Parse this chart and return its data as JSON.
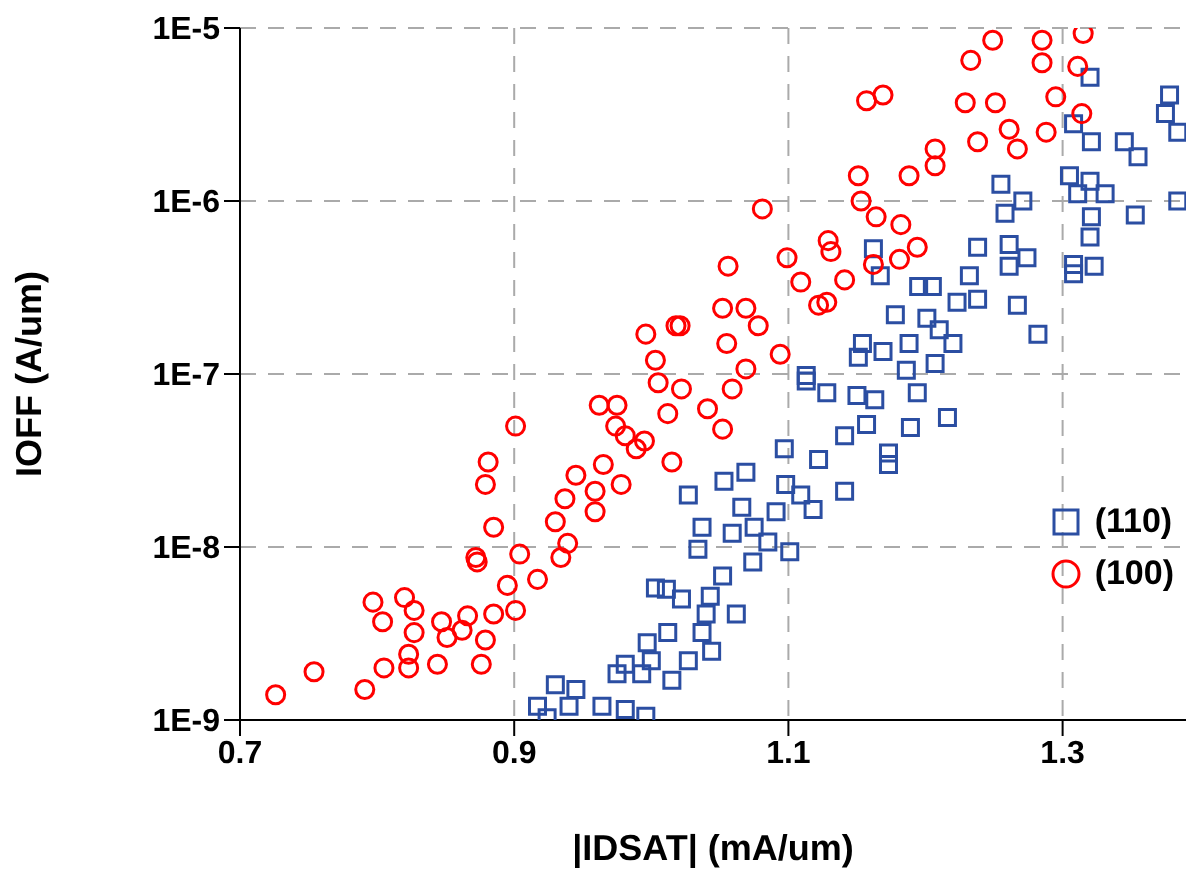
{
  "chart_data": {
    "type": "scatter",
    "xlabel": "|IDSAT| (mA/um)",
    "ylabel": "IOFF (A/um)",
    "log": "y",
    "grid": true,
    "legend": "right",
    "xlim": [
      0.7,
      1.39
    ],
    "xticks": [
      0.7,
      0.9,
      1.1,
      1.3
    ],
    "ylim": [
      1e-09,
      1e-05
    ],
    "yticks": [
      {
        "value": 1e-09,
        "label": "1E-9"
      },
      {
        "value": 1e-08,
        "label": "1E-8"
      },
      {
        "value": 1e-07,
        "label": "1E-7"
      },
      {
        "value": 1e-06,
        "label": "1E-6"
      },
      {
        "value": 1e-05,
        "label": "1E-5"
      }
    ],
    "series": [
      {
        "name": "(110)",
        "color": "#2b4ea2",
        "marker": "square",
        "x": [
          1.32,
          1.378,
          1.375,
          1.384,
          1.308,
          1.321,
          1.345,
          1.355,
          1.305,
          1.32,
          1.311,
          1.331,
          1.384,
          1.255,
          1.271,
          1.258,
          1.353,
          1.321,
          1.32,
          1.261,
          1.238,
          1.274,
          1.162,
          1.261,
          1.308,
          1.323,
          1.308,
          1.232,
          1.167,
          1.195,
          1.205,
          1.223,
          1.238,
          1.267,
          1.178,
          1.201,
          1.21,
          1.282,
          1.154,
          1.188,
          1.169,
          1.22,
          1.151,
          1.207,
          1.113,
          1.186,
          1.113,
          1.128,
          1.15,
          1.163,
          1.194,
          1.216,
          1.189,
          1.157,
          1.141,
          1.173,
          1.173,
          1.097,
          1.122,
          1.069,
          1.053,
          1.098,
          1.141,
          1.109,
          1.027,
          1.066,
          1.118,
          1.091,
          1.037,
          1.075,
          1.059,
          1.085,
          1.101,
          1.034,
          1.074,
          1.052,
          1.011,
          1.022,
          1.043,
          1.062,
          1.04,
          1.012,
          1.037,
          1.044,
          1.027,
          1.015,
          1.003,
          0.997,
          1.0,
          0.981,
          0.993,
          0.975,
          0.93,
          0.945,
          0.917,
          0.94,
          0.964,
          0.981,
          0.924,
          0.996
        ],
        "values": [
          5.2e-06,
          4.1e-06,
          3.2e-06,
          2.5e-06,
          2.8e-06,
          2.2e-06,
          2.2e-06,
          1.8e-06,
          1.4e-06,
          1.3e-06,
          1.1e-06,
          1.1e-06,
          1e-06,
          1.25e-06,
          1e-06,
          8.5e-07,
          8.3e-07,
          8.1e-07,
          6.2e-07,
          5.6e-07,
          5.4e-07,
          4.7e-07,
          5.3e-07,
          4.2e-07,
          4.3e-07,
          4.2e-07,
          3.8e-07,
          3.7e-07,
          3.7e-07,
          3.2e-07,
          3.2e-07,
          2.6e-07,
          2.7e-07,
          2.5e-07,
          2.2e-07,
          2.1e-07,
          1.8e-07,
          1.7e-07,
          1.5e-07,
          1.5e-07,
          1.35e-07,
          1.5e-07,
          1.25e-07,
          1.15e-07,
          9.8e-08,
          1.05e-07,
          9.1e-08,
          7.8e-08,
          7.5e-08,
          7.1e-08,
          7.8e-08,
          5.6e-08,
          4.9e-08,
          5.1e-08,
          4.4e-08,
          3.5e-08,
          3e-08,
          3.7e-08,
          3.2e-08,
          2.7e-08,
          2.4e-08,
          2.3e-08,
          2.1e-08,
          2e-08,
          2e-08,
          1.7e-08,
          1.65e-08,
          1.6e-08,
          1.3e-08,
          1.3e-08,
          1.2e-08,
          1.07e-08,
          9.4e-09,
          9.7e-09,
          8.2e-09,
          6.8e-09,
          5.7e-09,
          5e-09,
          5.2e-09,
          4.1e-09,
          4.1e-09,
          3.2e-09,
          3.2e-09,
          2.5e-09,
          2.2e-09,
          1.7e-09,
          5.8e-09,
          2.8e-09,
          2.2e-09,
          2.1e-09,
          1.85e-09,
          1.85e-09,
          1.6e-09,
          1.5e-09,
          1.2e-09,
          1.2e-09,
          1.2e-09,
          1.15e-09,
          1.03e-09,
          1.05e-09
        ]
      },
      {
        "name": "(100)",
        "color": "#ff0000",
        "marker": "circle",
        "x": [
          0.726,
          0.754,
          0.791,
          0.797,
          0.804,
          0.805,
          0.82,
          0.827,
          0.827,
          0.823,
          0.823,
          0.844,
          0.847,
          0.851,
          0.862,
          0.866,
          0.876,
          0.879,
          0.885,
          0.895,
          0.901,
          0.904,
          0.872,
          0.873,
          0.885,
          0.879,
          0.881,
          0.901,
          0.917,
          0.934,
          0.939,
          0.93,
          0.937,
          0.945,
          0.959,
          0.959,
          0.965,
          0.978,
          0.962,
          0.975,
          0.974,
          0.981,
          0.989,
          0.995,
          1.005,
          1.012,
          1.015,
          0.996,
          1.018,
          1.003,
          1.315,
          1.285,
          1.249,
          1.233,
          1.285,
          1.311,
          1.157,
          1.169,
          1.229,
          1.251,
          1.295,
          1.314,
          1.261,
          1.288,
          1.238,
          1.267,
          1.207,
          1.207,
          1.188,
          1.151,
          1.153,
          1.081,
          1.164,
          1.182,
          1.129,
          1.131,
          1.194,
          1.099,
          1.162,
          1.181,
          1.056,
          1.141,
          1.109,
          1.128,
          1.122,
          1.052,
          1.069,
          1.078,
          1.021,
          1.055,
          1.094,
          1.069,
          1.022,
          1.059,
          1.041,
          1.052
        ],
        "values": [
          1.4e-09,
          1.9e-09,
          1.5e-09,
          4.8e-09,
          3.7e-09,
          2e-09,
          5.1e-09,
          4.3e-09,
          3.2e-09,
          2.4e-09,
          2e-09,
          2.1e-09,
          3.7e-09,
          3e-09,
          3.3e-09,
          4e-09,
          2.1e-09,
          2.9e-09,
          4.1e-09,
          6e-09,
          4.3e-09,
          9.1e-09,
          8.7e-09,
          8.2e-09,
          1.3e-08,
          2.3e-08,
          3.1e-08,
          5e-08,
          6.5e-09,
          8.7e-09,
          1.05e-08,
          1.4e-08,
          1.9e-08,
          2.6e-08,
          1.6e-08,
          2.1e-08,
          3e-08,
          2.3e-08,
          6.6e-08,
          6.6e-08,
          5e-08,
          4.4e-08,
          3.7e-08,
          4.1e-08,
          8.9e-08,
          5.9e-08,
          3.1e-08,
          1.7e-07,
          1.9e-07,
          1.2e-07,
          9.3e-06,
          8.5e-06,
          8.5e-06,
          6.5e-06,
          6.3e-06,
          6e-06,
          3.8e-06,
          4.1e-06,
          3.7e-06,
          3.7e-06,
          4e-06,
          3.2e-06,
          2.6e-06,
          2.5e-06,
          2.2e-06,
          2e-06,
          2e-06,
          1.6e-06,
          1.4e-06,
          1.4e-06,
          1e-06,
          9e-07,
          8.1e-07,
          7.3e-07,
          5.9e-07,
          5.1e-07,
          5.4e-07,
          4.7e-07,
          4.3e-07,
          4.6e-07,
          4.2e-07,
          3.5e-07,
          3.4e-07,
          2.6e-07,
          2.5e-07,
          2.4e-07,
          2.4e-07,
          1.9e-07,
          1.9e-07,
          1.5e-07,
          1.3e-07,
          1.07e-07,
          8.2e-08,
          8.2e-08,
          6.3e-08,
          4.8e-08
        ]
      }
    ]
  }
}
